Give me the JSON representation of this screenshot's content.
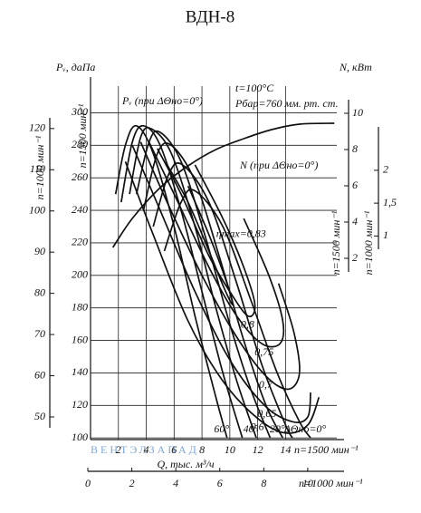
{
  "chart_data": {
    "type": "line",
    "title": "ВДН-8",
    "y_label": "Pᵥ, даПа",
    "y2_label": "N, кВт",
    "y_outer_label": "n=1000 мин⁻¹",
    "y_inner_label": "n=1500 мин⁻¹",
    "y2_inner_label": "n=1500 мин⁻¹",
    "y2_outer_label": "n=1000 мин⁻¹",
    "x_label": "Q, тыс. м³/ч",
    "x_speed_label": "n=1500 мин⁻¹",
    "x2_speed_label": "n=1000 мин⁻¹",
    "note_temperature": "t=100°C",
    "note_pressure": "Pбар=760 мм. рт. ст.",
    "pressure_curve_label": "Pᵥ (при ΔΘно=0°)",
    "power_curve_label": "N (при ΔΘно=0°)",
    "watermark": "ВЕНТЭЛЗАПАД",
    "xlim": [
      0,
      18.2
    ],
    "xticks": [
      2,
      4,
      6,
      8,
      10,
      12,
      14
    ],
    "x2lim": [
      0,
      11.65
    ],
    "x2ticks": [
      0,
      2,
      4,
      6,
      8,
      10
    ],
    "ylim": [
      99,
      322
    ],
    "yticks": [
      100,
      120,
      140,
      160,
      180,
      200,
      220,
      240,
      260,
      280,
      300
    ],
    "y_outer_lim": [
      44.5,
      132.5
    ],
    "y_outer_ticks": [
      50,
      60,
      70,
      80,
      90,
      100,
      110,
      120
    ],
    "y2lim": [
      -8,
      12
    ],
    "y2ticks": [
      2,
      4,
      6,
      8,
      10
    ],
    "y2_outer_lim": [
      -2.1,
      3.42
    ],
    "y2_outer_ticks": [
      1,
      {
        "value": 1.5,
        "label": "1,5"
      },
      2
    ],
    "grid": true,
    "series": [
      {
        "name": "60°",
        "x": [
          1.8,
          2.5,
          3.3,
          4.5,
          6,
          7.5,
          9,
          9.8
        ],
        "values": [
          250,
          280,
          292,
          275,
          230,
          175,
          125,
          100
        ]
      },
      {
        "x": [
          2.2,
          3,
          3.8,
          5,
          6.5,
          8,
          9.5,
          10.9
        ],
        "values": [
          245,
          282,
          292,
          280,
          240,
          190,
          140,
          100
        ]
      },
      {
        "name": "40°",
        "x": [
          2.8,
          3.6,
          4.4,
          5.8,
          7.5,
          9,
          10.5,
          11.9
        ],
        "values": [
          250,
          285,
          290,
          275,
          230,
          180,
          135,
          100
        ]
      },
      {
        "x": [
          3.3,
          4.2,
          5,
          6.5,
          8.2,
          10,
          11.5,
          12.9
        ],
        "values": [
          250,
          282,
          288,
          270,
          225,
          170,
          130,
          100
        ]
      },
      {
        "name": "20°",
        "x": [
          3.8,
          4.8,
          5.8,
          7.5,
          9.3,
          11,
          12.6,
          13.8
        ],
        "values": [
          240,
          275,
          280,
          258,
          210,
          160,
          120,
          100
        ]
      },
      {
        "x": [
          4.5,
          5.6,
          6.6,
          8.5,
          10.5,
          12.3,
          14,
          14.5
        ],
        "values": [
          230,
          262,
          268,
          245,
          195,
          145,
          108,
          100
        ]
      },
      {
        "name": "ΔΘно=0°",
        "x": [
          5.3,
          6.5,
          7.5,
          9.5,
          11.5,
          13.4,
          15,
          15.8
        ],
        "values": [
          215,
          245,
          252,
          230,
          185,
          140,
          110,
          100
        ]
      }
    ],
    "power": {
      "axis": "y2",
      "x": [
        1.6,
        3,
        5,
        7,
        9,
        11,
        13,
        15,
        17.5
      ],
      "values": [
        2.6,
        4.2,
        5.9,
        7.1,
        8,
        8.6,
        9.1,
        9.4,
        9.45
      ]
    },
    "efficiency": [
      {
        "name": "ηmax=0,83",
        "x": [
          5.5,
          7,
          8.5,
          9.6,
          10.2,
          9.8,
          8.5,
          7
        ],
        "values": [
          268,
          245,
          215,
          192,
          182,
          195,
          225,
          255
        ]
      },
      {
        "name": "0,8",
        "x": [
          4.8,
          6.5,
          8.5,
          10,
          11.3,
          11.8,
          11,
          9.5,
          7.5
        ],
        "values": [
          278,
          250,
          212,
          190,
          175,
          182,
          205,
          235,
          268
        ]
      },
      {
        "name": "0,75",
        "x": [
          4.2,
          6,
          8.5,
          10.5,
          12.3,
          13.6,
          13.8,
          12.8,
          11
        ],
        "values": [
          282,
          250,
          205,
          175,
          158,
          158,
          172,
          200,
          235
        ]
      },
      {
        "name": "0,7",
        "x": [
          3.6,
          5.5,
          8,
          10.5,
          12.6,
          14.2,
          15,
          14.6,
          13.5
        ],
        "values": [
          282,
          245,
          200,
          162,
          138,
          130,
          140,
          165,
          195
        ]
      },
      {
        "name": "0,65",
        "x": [
          3,
          5,
          7.5,
          10,
          12.5,
          14.5,
          15.6,
          15.8
        ],
        "values": [
          280,
          240,
          190,
          148,
          120,
          110,
          113,
          128
        ]
      },
      {
        "name": "0,6",
        "x": [
          2.5,
          4.5,
          7,
          9.5,
          12,
          14,
          15.6,
          16.4
        ],
        "values": [
          270,
          225,
          172,
          135,
          112,
          103,
          108,
          125
        ]
      }
    ]
  }
}
